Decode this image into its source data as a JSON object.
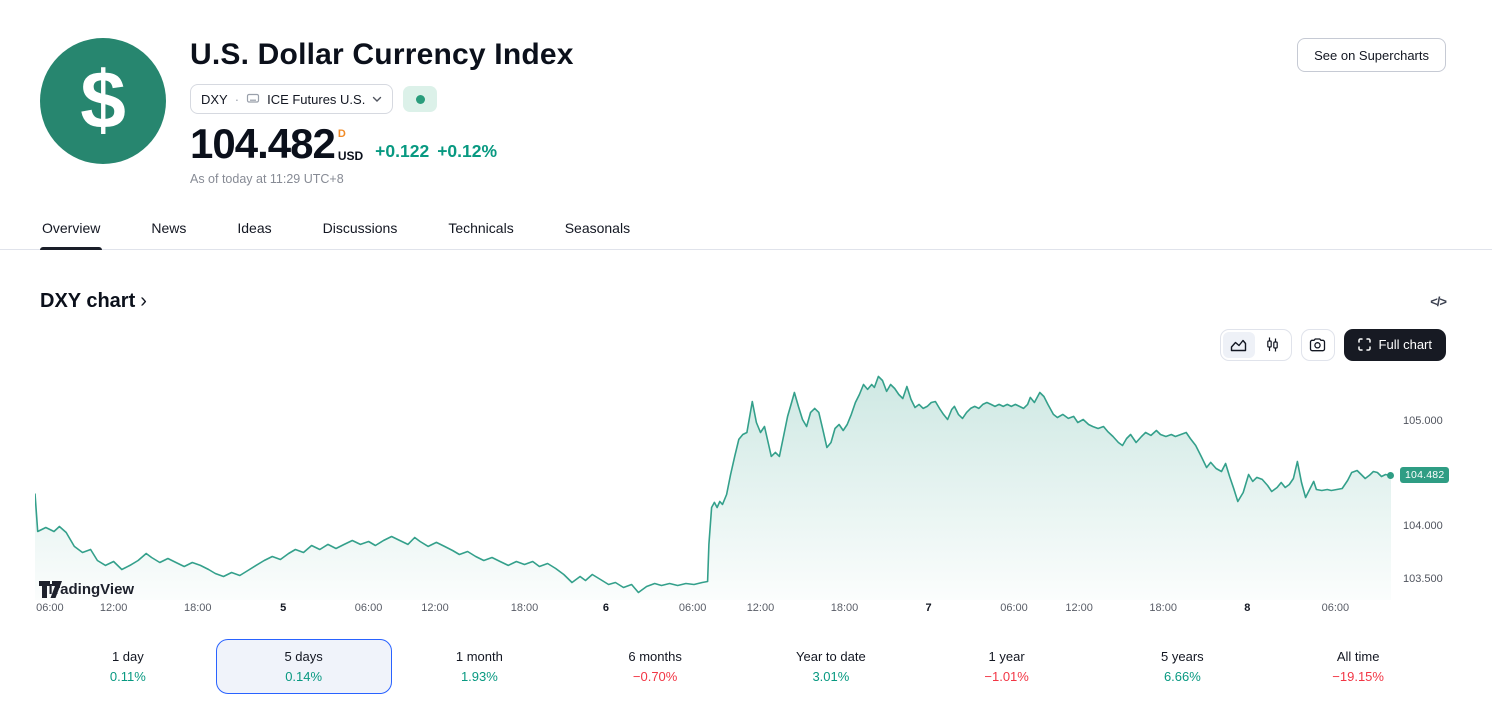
{
  "header": {
    "title": "U.S. Dollar Currency Index",
    "logo_symbol": "$",
    "symbol_pill": {
      "symbol": "DXY",
      "separator": "·",
      "exchange": "ICE Futures U.S."
    },
    "price": {
      "value": "104.482",
      "flag": "D",
      "currency": "USD",
      "change": "+0.122",
      "change_pct": "+0.12%"
    },
    "as_of": "As of today at 11:29 UTC+8",
    "supercharts_button": "See on Supercharts"
  },
  "tabs": {
    "items": [
      {
        "label": "Overview",
        "active": true
      },
      {
        "label": "News",
        "active": false
      },
      {
        "label": "Ideas",
        "active": false
      },
      {
        "label": "Discussions",
        "active": false
      },
      {
        "label": "Technicals",
        "active": false
      },
      {
        "label": "Seasonals",
        "active": false
      }
    ]
  },
  "chart_section": {
    "heading": "DXY chart",
    "heading_chevron": "›",
    "embed_icon": "</>",
    "full_chart_button": "Full chart",
    "watermark": "TradingView"
  },
  "colors": {
    "accent_blue": "#2962ff",
    "green": "#089981",
    "red": "#f23645",
    "line": "#34a08b",
    "fill_top": "rgba(52,160,139,0.24)",
    "fill_bottom": "rgba(52,160,139,0.02)",
    "badge": "#2f9d84",
    "logo_green": "#27866f"
  },
  "chart_data": {
    "type": "area",
    "symbol": "DXY",
    "title": "DXY chart",
    "last_price": 104.482,
    "last_price_label": "104.482",
    "y_axis": {
      "min": 103.3,
      "max": 105.49,
      "ticks": [
        {
          "label": "105.000",
          "value": 105.0
        },
        {
          "label": "104.000",
          "value": 104.0
        },
        {
          "label": "103.500",
          "value": 103.5
        }
      ]
    },
    "x_ticks": [
      {
        "label": "06:00",
        "pos": 0.011,
        "major": false
      },
      {
        "label": "12:00",
        "pos": 0.058,
        "major": false
      },
      {
        "label": "18:00",
        "pos": 0.12,
        "major": false
      },
      {
        "label": "5",
        "pos": 0.183,
        "major": true
      },
      {
        "label": "06:00",
        "pos": 0.246,
        "major": false
      },
      {
        "label": "12:00",
        "pos": 0.295,
        "major": false
      },
      {
        "label": "18:00",
        "pos": 0.361,
        "major": false
      },
      {
        "label": "6",
        "pos": 0.421,
        "major": true
      },
      {
        "label": "06:00",
        "pos": 0.485,
        "major": false
      },
      {
        "label": "12:00",
        "pos": 0.535,
        "major": false
      },
      {
        "label": "18:00",
        "pos": 0.597,
        "major": false
      },
      {
        "label": "7",
        "pos": 0.659,
        "major": true
      },
      {
        "label": "06:00",
        "pos": 0.722,
        "major": false
      },
      {
        "label": "12:00",
        "pos": 0.77,
        "major": false
      },
      {
        "label": "18:00",
        "pos": 0.832,
        "major": false
      },
      {
        "label": "8",
        "pos": 0.894,
        "major": true
      },
      {
        "label": "06:00",
        "pos": 0.959,
        "major": false
      }
    ],
    "points": [
      [
        0.0,
        104.314
      ],
      [
        0.002,
        103.952
      ],
      [
        0.008,
        103.99
      ],
      [
        0.014,
        103.952
      ],
      [
        0.018,
        104.0
      ],
      [
        0.023,
        103.943
      ],
      [
        0.029,
        103.81
      ],
      [
        0.035,
        103.752
      ],
      [
        0.041,
        103.781
      ],
      [
        0.046,
        103.676
      ],
      [
        0.052,
        103.629
      ],
      [
        0.058,
        103.667
      ],
      [
        0.064,
        103.59
      ],
      [
        0.07,
        103.629
      ],
      [
        0.076,
        103.676
      ],
      [
        0.082,
        103.743
      ],
      [
        0.086,
        103.705
      ],
      [
        0.092,
        103.657
      ],
      [
        0.098,
        103.695
      ],
      [
        0.104,
        103.657
      ],
      [
        0.11,
        103.619
      ],
      [
        0.116,
        103.657
      ],
      [
        0.122,
        103.629
      ],
      [
        0.128,
        103.59
      ],
      [
        0.133,
        103.552
      ],
      [
        0.139,
        103.524
      ],
      [
        0.145,
        103.562
      ],
      [
        0.151,
        103.533
      ],
      [
        0.157,
        103.581
      ],
      [
        0.163,
        103.629
      ],
      [
        0.169,
        103.676
      ],
      [
        0.175,
        103.714
      ],
      [
        0.181,
        103.686
      ],
      [
        0.187,
        103.743
      ],
      [
        0.192,
        103.781
      ],
      [
        0.198,
        103.752
      ],
      [
        0.204,
        103.819
      ],
      [
        0.21,
        103.781
      ],
      [
        0.216,
        103.829
      ],
      [
        0.222,
        103.79
      ],
      [
        0.228,
        103.829
      ],
      [
        0.234,
        103.867
      ],
      [
        0.24,
        103.829
      ],
      [
        0.246,
        103.857
      ],
      [
        0.251,
        103.819
      ],
      [
        0.257,
        103.867
      ],
      [
        0.263,
        103.905
      ],
      [
        0.269,
        103.867
      ],
      [
        0.275,
        103.829
      ],
      [
        0.28,
        103.895
      ],
      [
        0.284,
        103.857
      ],
      [
        0.29,
        103.81
      ],
      [
        0.296,
        103.848
      ],
      [
        0.302,
        103.81
      ],
      [
        0.308,
        103.771
      ],
      [
        0.313,
        103.733
      ],
      [
        0.319,
        103.762
      ],
      [
        0.325,
        103.714
      ],
      [
        0.331,
        103.676
      ],
      [
        0.337,
        103.705
      ],
      [
        0.343,
        103.667
      ],
      [
        0.349,
        103.629
      ],
      [
        0.355,
        103.667
      ],
      [
        0.361,
        103.638
      ],
      [
        0.367,
        103.667
      ],
      [
        0.372,
        103.619
      ],
      [
        0.378,
        103.648
      ],
      [
        0.384,
        103.6
      ],
      [
        0.39,
        103.543
      ],
      [
        0.396,
        103.467
      ],
      [
        0.402,
        103.524
      ],
      [
        0.406,
        103.486
      ],
      [
        0.411,
        103.543
      ],
      [
        0.417,
        103.495
      ],
      [
        0.423,
        103.448
      ],
      [
        0.428,
        103.467
      ],
      [
        0.434,
        103.419
      ],
      [
        0.44,
        103.448
      ],
      [
        0.445,
        103.371
      ],
      [
        0.451,
        103.429
      ],
      [
        0.457,
        103.457
      ],
      [
        0.462,
        103.438
      ],
      [
        0.468,
        103.457
      ],
      [
        0.474,
        103.438
      ],
      [
        0.48,
        103.457
      ],
      [
        0.486,
        103.448
      ],
      [
        0.492,
        103.467
      ],
      [
        0.496,
        103.476
      ],
      [
        0.497,
        103.829
      ],
      [
        0.499,
        104.181
      ],
      [
        0.501,
        104.229
      ],
      [
        0.503,
        104.181
      ],
      [
        0.505,
        104.238
      ],
      [
        0.507,
        104.21
      ],
      [
        0.51,
        104.305
      ],
      [
        0.513,
        104.495
      ],
      [
        0.516,
        104.667
      ],
      [
        0.519,
        104.829
      ],
      [
        0.522,
        104.876
      ],
      [
        0.525,
        104.895
      ],
      [
        0.529,
        105.19
      ],
      [
        0.532,
        104.99
      ],
      [
        0.535,
        104.895
      ],
      [
        0.538,
        104.952
      ],
      [
        0.541,
        104.781
      ],
      [
        0.543,
        104.667
      ],
      [
        0.546,
        104.705
      ],
      [
        0.549,
        104.667
      ],
      [
        0.552,
        104.857
      ],
      [
        0.555,
        105.048
      ],
      [
        0.558,
        105.181
      ],
      [
        0.56,
        105.276
      ],
      [
        0.563,
        105.143
      ],
      [
        0.566,
        105.019
      ],
      [
        0.569,
        104.952
      ],
      [
        0.572,
        105.086
      ],
      [
        0.575,
        105.124
      ],
      [
        0.578,
        105.086
      ],
      [
        0.581,
        104.924
      ],
      [
        0.584,
        104.752
      ],
      [
        0.587,
        104.8
      ],
      [
        0.59,
        104.933
      ],
      [
        0.593,
        104.971
      ],
      [
        0.596,
        104.914
      ],
      [
        0.599,
        104.971
      ],
      [
        0.602,
        105.067
      ],
      [
        0.605,
        105.181
      ],
      [
        0.608,
        105.257
      ],
      [
        0.611,
        105.352
      ],
      [
        0.614,
        105.305
      ],
      [
        0.617,
        105.352
      ],
      [
        0.619,
        105.324
      ],
      [
        0.622,
        105.429
      ],
      [
        0.625,
        105.39
      ],
      [
        0.628,
        105.286
      ],
      [
        0.631,
        105.352
      ],
      [
        0.634,
        105.314
      ],
      [
        0.637,
        105.257
      ],
      [
        0.64,
        105.219
      ],
      [
        0.643,
        105.333
      ],
      [
        0.646,
        105.21
      ],
      [
        0.649,
        105.133
      ],
      [
        0.652,
        105.162
      ],
      [
        0.655,
        105.124
      ],
      [
        0.658,
        105.143
      ],
      [
        0.661,
        105.181
      ],
      [
        0.664,
        105.19
      ],
      [
        0.667,
        105.124
      ],
      [
        0.67,
        105.067
      ],
      [
        0.673,
        105.019
      ],
      [
        0.676,
        105.114
      ],
      [
        0.678,
        105.143
      ],
      [
        0.681,
        105.067
      ],
      [
        0.684,
        105.029
      ],
      [
        0.687,
        105.086
      ],
      [
        0.69,
        105.124
      ],
      [
        0.693,
        105.143
      ],
      [
        0.696,
        105.124
      ],
      [
        0.699,
        105.162
      ],
      [
        0.702,
        105.181
      ],
      [
        0.705,
        105.162
      ],
      [
        0.708,
        105.143
      ],
      [
        0.711,
        105.162
      ],
      [
        0.714,
        105.143
      ],
      [
        0.717,
        105.162
      ],
      [
        0.72,
        105.143
      ],
      [
        0.723,
        105.162
      ],
      [
        0.726,
        105.143
      ],
      [
        0.729,
        105.124
      ],
      [
        0.732,
        105.162
      ],
      [
        0.734,
        105.229
      ],
      [
        0.737,
        105.181
      ],
      [
        0.741,
        105.276
      ],
      [
        0.744,
        105.238
      ],
      [
        0.747,
        105.162
      ],
      [
        0.751,
        105.067
      ],
      [
        0.754,
        105.038
      ],
      [
        0.758,
        105.067
      ],
      [
        0.762,
        105.029
      ],
      [
        0.766,
        105.048
      ],
      [
        0.769,
        104.99
      ],
      [
        0.773,
        105.019
      ],
      [
        0.777,
        104.971
      ],
      [
        0.78,
        104.952
      ],
      [
        0.784,
        104.933
      ],
      [
        0.788,
        104.952
      ],
      [
        0.791,
        104.905
      ],
      [
        0.795,
        104.857
      ],
      [
        0.799,
        104.8
      ],
      [
        0.802,
        104.771
      ],
      [
        0.805,
        104.838
      ],
      [
        0.808,
        104.876
      ],
      [
        0.812,
        104.8
      ],
      [
        0.816,
        104.857
      ],
      [
        0.819,
        104.895
      ],
      [
        0.823,
        104.867
      ],
      [
        0.827,
        104.914
      ],
      [
        0.83,
        104.876
      ],
      [
        0.834,
        104.857
      ],
      [
        0.838,
        104.876
      ],
      [
        0.841,
        104.857
      ],
      [
        0.845,
        104.876
      ],
      [
        0.849,
        104.895
      ],
      [
        0.852,
        104.838
      ],
      [
        0.856,
        104.771
      ],
      [
        0.86,
        104.667
      ],
      [
        0.864,
        104.562
      ],
      [
        0.867,
        104.61
      ],
      [
        0.871,
        104.552
      ],
      [
        0.875,
        104.524
      ],
      [
        0.878,
        104.6
      ],
      [
        0.881,
        104.476
      ],
      [
        0.884,
        104.362
      ],
      [
        0.887,
        104.238
      ],
      [
        0.891,
        104.324
      ],
      [
        0.895,
        104.495
      ],
      [
        0.898,
        104.429
      ],
      [
        0.901,
        104.467
      ],
      [
        0.905,
        104.448
      ],
      [
        0.909,
        104.39
      ],
      [
        0.912,
        104.333
      ],
      [
        0.916,
        104.371
      ],
      [
        0.919,
        104.419
      ],
      [
        0.922,
        104.371
      ],
      [
        0.925,
        104.4
      ],
      [
        0.928,
        104.457
      ],
      [
        0.931,
        104.619
      ],
      [
        0.934,
        104.419
      ],
      [
        0.937,
        104.276
      ],
      [
        0.94,
        104.352
      ],
      [
        0.943,
        104.429
      ],
      [
        0.945,
        104.352
      ],
      [
        0.949,
        104.343
      ],
      [
        0.953,
        104.352
      ],
      [
        0.956,
        104.343
      ],
      [
        0.96,
        104.352
      ],
      [
        0.964,
        104.362
      ],
      [
        0.968,
        104.438
      ],
      [
        0.971,
        104.514
      ],
      [
        0.975,
        104.533
      ],
      [
        0.978,
        104.495
      ],
      [
        0.981,
        104.457
      ],
      [
        0.984,
        104.486
      ],
      [
        0.987,
        104.524
      ],
      [
        0.99,
        104.514
      ],
      [
        0.993,
        104.476
      ],
      [
        0.996,
        104.495
      ],
      [
        1.0,
        104.482
      ]
    ]
  },
  "ranges": {
    "items": [
      {
        "label": "1 day",
        "pct": "0.11%",
        "dir": "up",
        "selected": false
      },
      {
        "label": "5 days",
        "pct": "0.14%",
        "dir": "up",
        "selected": true
      },
      {
        "label": "1 month",
        "pct": "1.93%",
        "dir": "up",
        "selected": false
      },
      {
        "label": "6 months",
        "pct": "−0.70%",
        "dir": "down",
        "selected": false
      },
      {
        "label": "Year to date",
        "pct": "3.01%",
        "dir": "up",
        "selected": false
      },
      {
        "label": "1 year",
        "pct": "−1.01%",
        "dir": "down",
        "selected": false
      },
      {
        "label": "5 years",
        "pct": "6.66%",
        "dir": "up",
        "selected": false
      },
      {
        "label": "All time",
        "pct": "−19.15%",
        "dir": "down",
        "selected": false
      }
    ]
  }
}
